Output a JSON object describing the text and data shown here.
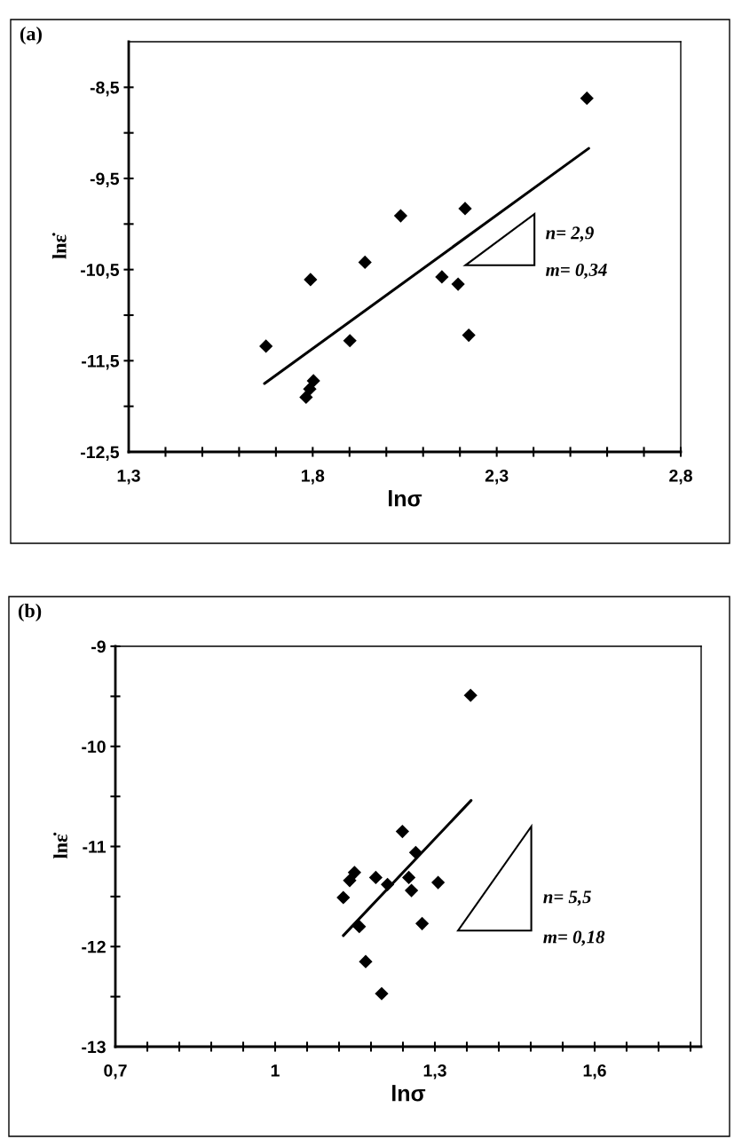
{
  "chart_data": [
    {
      "type": "scatter",
      "title": "(a)",
      "xlabel": "lnσ",
      "ylabel": "lnε̇",
      "xlim": [
        1.3,
        2.8
      ],
      "ylim": [
        -12.5,
        -8.0
      ],
      "xticks": [
        {
          "value": 1.3,
          "label": "1,3"
        },
        {
          "value": 1.4,
          "label": null
        },
        {
          "value": 1.5,
          "label": null
        },
        {
          "value": 1.6,
          "label": null
        },
        {
          "value": 1.7,
          "label": null
        },
        {
          "value": 1.8,
          "label": "1,8"
        },
        {
          "value": 1.9,
          "label": null
        },
        {
          "value": 2.0,
          "label": null
        },
        {
          "value": 2.1,
          "label": null
        },
        {
          "value": 2.2,
          "label": null
        },
        {
          "value": 2.3,
          "label": "2,3"
        },
        {
          "value": 2.4,
          "label": null
        },
        {
          "value": 2.5,
          "label": null
        },
        {
          "value": 2.6,
          "label": null
        },
        {
          "value": 2.7,
          "label": null
        },
        {
          "value": 2.8,
          "label": "2,8"
        }
      ],
      "yticks": [
        {
          "value": -12.5,
          "label": "-12,5"
        },
        {
          "value": -12.0,
          "label": null
        },
        {
          "value": -11.5,
          "label": "-11,5"
        },
        {
          "value": -11.0,
          "label": null
        },
        {
          "value": -10.5,
          "label": "-10,5"
        },
        {
          "value": -10.0,
          "label": null
        },
        {
          "value": -9.5,
          "label": "-9,5"
        },
        {
          "value": -9.0,
          "label": null
        },
        {
          "value": -8.5,
          "label": "-8,5"
        }
      ],
      "grid": false,
      "series": [
        {
          "type": "scatter",
          "color": "#000000",
          "marker": "diamond",
          "x": [
            1.673,
            1.794,
            1.942,
            2.039,
            1.901,
            1.802,
            1.792,
            1.782,
            2.151,
            2.195,
            2.214,
            2.224,
            2.545
          ],
          "values": [
            -11.34,
            -10.61,
            -10.42,
            -9.91,
            -11.28,
            -11.72,
            -11.81,
            -11.9,
            -10.58,
            -10.66,
            -9.83,
            -11.22,
            -8.62
          ]
        },
        {
          "type": "line",
          "color": "#000000",
          "x": [
            1.669,
            2.55
          ],
          "values": [
            -11.75,
            -9.17
          ]
        }
      ],
      "annotations": [
        "n= 2,9",
        "m= 0,34"
      ]
    },
    {
      "type": "scatter",
      "title": "(b)",
      "xlabel": "lnσ",
      "ylabel": "lnε̇",
      "xlim": [
        0.7,
        1.8
      ],
      "ylim": [
        -13,
        -9
      ],
      "xticks": [
        {
          "value": 0.7,
          "label": "0,7"
        },
        {
          "value": 0.76,
          "label": null
        },
        {
          "value": 0.82,
          "label": null
        },
        {
          "value": 0.88,
          "label": null
        },
        {
          "value": 0.94,
          "label": null
        },
        {
          "value": 1.0,
          "label": "1"
        },
        {
          "value": 1.06,
          "label": null
        },
        {
          "value": 1.12,
          "label": null
        },
        {
          "value": 1.18,
          "label": null
        },
        {
          "value": 1.24,
          "label": null
        },
        {
          "value": 1.3,
          "label": "1,3"
        },
        {
          "value": 1.36,
          "label": null
        },
        {
          "value": 1.42,
          "label": null
        },
        {
          "value": 1.48,
          "label": null
        },
        {
          "value": 1.54,
          "label": null
        },
        {
          "value": 1.6,
          "label": "1,6"
        },
        {
          "value": 1.66,
          "label": null
        },
        {
          "value": 1.72,
          "label": null
        },
        {
          "value": 1.78,
          "label": null
        }
      ],
      "yticks": [
        {
          "value": -13,
          "label": "-13"
        },
        {
          "value": -12.5,
          "label": null
        },
        {
          "value": -12,
          "label": "-12"
        },
        {
          "value": -11.5,
          "label": null
        },
        {
          "value": -11,
          "label": "-11"
        },
        {
          "value": -10.5,
          "label": null
        },
        {
          "value": -10,
          "label": "-10"
        },
        {
          "value": -9.5,
          "label": null
        },
        {
          "value": -9,
          "label": "-9"
        }
      ],
      "grid": false,
      "series": [
        {
          "type": "scatter",
          "color": "#000000",
          "marker": "diamond",
          "x": [
            1.367,
            1.239,
            1.264,
            1.149,
            1.14,
            1.128,
            1.189,
            1.211,
            1.251,
            1.256,
            1.306,
            1.158,
            1.276,
            1.17,
            1.2
          ],
          "values": [
            -9.49,
            -10.85,
            -11.06,
            -11.26,
            -11.34,
            -11.51,
            -11.31,
            -11.38,
            -11.31,
            -11.44,
            -11.36,
            -11.8,
            -11.77,
            -12.15,
            -12.47
          ]
        },
        {
          "type": "line",
          "color": "#000000",
          "x": [
            1.128,
            1.368
          ],
          "values": [
            -11.89,
            -10.54
          ]
        }
      ],
      "annotations": [
        "n= 5,5",
        "m= 0,18"
      ]
    }
  ]
}
